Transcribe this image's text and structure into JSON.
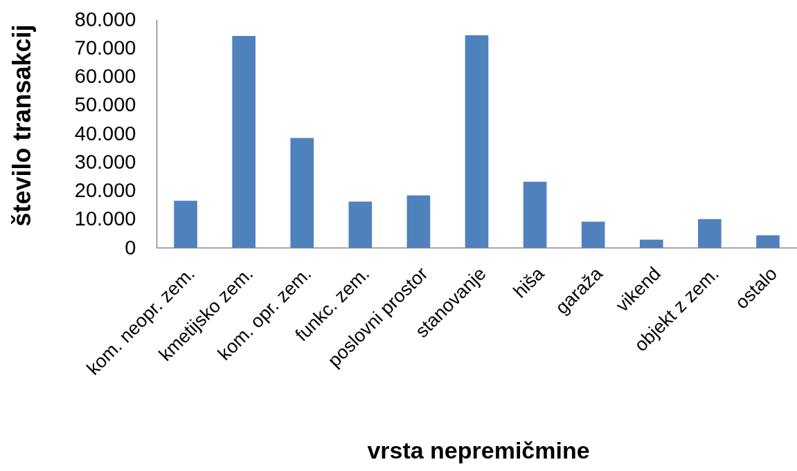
{
  "chart_data": {
    "type": "bar",
    "xlabel": "vrsta nepremičmine",
    "ylabel": "število transakcij",
    "categories": [
      "kom. neopr. zem.",
      "kmetijsko zem.",
      "kom. opr. zem.",
      "funkc. zem.",
      "poslovni prostor",
      "stanovanje",
      "hiša",
      "garaža",
      "vikend",
      "objekt z zem.",
      "ostalo"
    ],
    "values": [
      16400,
      74200,
      38400,
      16100,
      18300,
      74400,
      23100,
      9100,
      2800,
      10000,
      4300
    ],
    "color": "#4f81bd",
    "ylim": [
      0,
      80000
    ],
    "yticks": [
      0,
      {
        "value": 10000,
        "label": "10.000"
      },
      {
        "value": 20000,
        "label": "20.000"
      },
      {
        "value": 30000,
        "label": "30.000"
      },
      {
        "value": 40000,
        "label": "40.000"
      },
      {
        "value": 50000,
        "label": "50.000"
      },
      {
        "value": 60000,
        "label": "60.000"
      },
      {
        "value": 70000,
        "label": "70.000"
      },
      {
        "value": 80000,
        "label": "80.000"
      }
    ]
  }
}
